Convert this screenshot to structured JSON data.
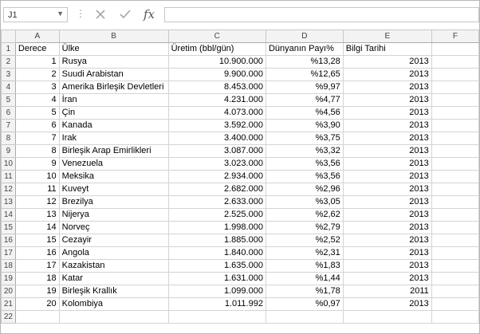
{
  "formula_bar": {
    "name_box": "J1",
    "cancel_icon": "✕",
    "enter_icon": "✓",
    "fx_label": "fx",
    "formula": ""
  },
  "columns": [
    "A",
    "B",
    "C",
    "D",
    "E",
    "F"
  ],
  "header_row": {
    "row": "1",
    "cells": [
      "Derece",
      "Ülke",
      "Üretim (bbl/gün)",
      "Dünyanın Payı%",
      "Bilgi Tarihi",
      ""
    ]
  },
  "rows": [
    {
      "row": "2",
      "cells": [
        "1",
        "Rusya",
        "10.900.000",
        "%13,28",
        "2013",
        ""
      ]
    },
    {
      "row": "3",
      "cells": [
        "2",
        "Suudi Arabistan",
        "9.900.000",
        "%12,65",
        "2013",
        ""
      ]
    },
    {
      "row": "4",
      "cells": [
        "3",
        "Amerika Birleşik Devletleri",
        "8.453.000",
        "%9,97",
        "2013",
        ""
      ]
    },
    {
      "row": "5",
      "cells": [
        "4",
        "İran",
        "4.231.000",
        "%4,77",
        "2013",
        ""
      ]
    },
    {
      "row": "6",
      "cells": [
        "5",
        "Çin",
        "4.073.000",
        "%4,56",
        "2013",
        ""
      ]
    },
    {
      "row": "7",
      "cells": [
        "6",
        "Kanada",
        "3.592.000",
        "%3,90",
        "2013",
        ""
      ]
    },
    {
      "row": "8",
      "cells": [
        "7",
        "Irak",
        "3.400.000",
        "%3,75",
        "2013",
        ""
      ]
    },
    {
      "row": "9",
      "cells": [
        "8",
        "Birleşik Arap Emirlikleri",
        "3.087.000",
        "%3,32",
        "2013",
        ""
      ]
    },
    {
      "row": "10",
      "cells": [
        "9",
        "Venezuela",
        "3.023.000",
        "%3,56",
        "2013",
        ""
      ]
    },
    {
      "row": "11",
      "cells": [
        "10",
        "Meksika",
        "2.934.000",
        "%3,56",
        "2013",
        ""
      ]
    },
    {
      "row": "12",
      "cells": [
        "11",
        "Kuveyt",
        "2.682.000",
        "%2,96",
        "2013",
        ""
      ]
    },
    {
      "row": "13",
      "cells": [
        "12",
        "Brezilya",
        "2.633.000",
        "%3,05",
        "2013",
        ""
      ]
    },
    {
      "row": "14",
      "cells": [
        "13",
        "Nijerya",
        "2.525.000",
        "%2,62",
        "2013",
        ""
      ]
    },
    {
      "row": "15",
      "cells": [
        "14",
        "Norveç",
        "1.998.000",
        "%2,79",
        "2013",
        ""
      ]
    },
    {
      "row": "16",
      "cells": [
        "15",
        "Cezayir",
        "1.885.000",
        "%2,52",
        "2013",
        ""
      ]
    },
    {
      "row": "17",
      "cells": [
        "16",
        "Angola",
        "1.840.000",
        "%2,31",
        "2013",
        ""
      ]
    },
    {
      "row": "18",
      "cells": [
        "17",
        "Kazakistan",
        "1.635.000",
        "%1,83",
        "2013",
        ""
      ]
    },
    {
      "row": "19",
      "cells": [
        "18",
        "Katar",
        "1.631.000",
        "%1,44",
        "2013",
        ""
      ]
    },
    {
      "row": "20",
      "cells": [
        "19",
        "Birleşik Krallık",
        "1.099.000",
        "%1,78",
        "2011",
        ""
      ]
    },
    {
      "row": "21",
      "cells": [
        "20",
        "Kolombiya",
        "1.011.992",
        "%0,97",
        "2013",
        ""
      ]
    },
    {
      "row": "22",
      "cells": [
        "",
        "",
        "",
        "",
        "",
        ""
      ]
    }
  ]
}
